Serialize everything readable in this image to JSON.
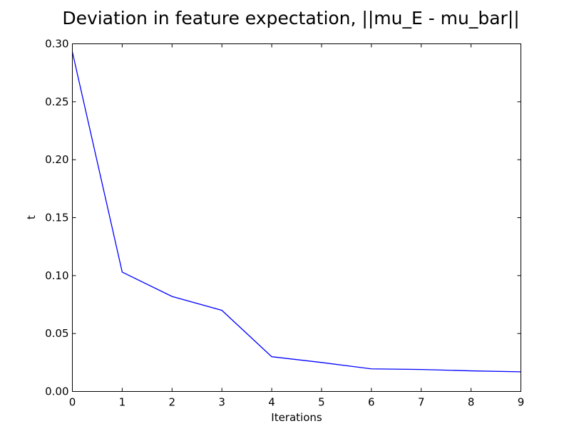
{
  "chart_data": {
    "type": "line",
    "title": "Deviation in feature expectation, ||mu_E - mu_bar||",
    "xlabel": "Iterations",
    "ylabel": "t",
    "xlim": [
      0,
      9
    ],
    "ylim": [
      0.0,
      0.3
    ],
    "xticks": [
      "0",
      "1",
      "2",
      "3",
      "4",
      "5",
      "6",
      "7",
      "8",
      "9"
    ],
    "yticks": [
      "0.00",
      "0.05",
      "0.10",
      "0.15",
      "0.20",
      "0.25",
      "0.30"
    ],
    "grid": false,
    "series": [
      {
        "color": "#0000ff",
        "x": [
          0,
          1,
          2,
          3,
          4,
          5,
          6,
          7,
          8,
          9
        ],
        "y": [
          0.293,
          0.103,
          0.082,
          0.07,
          0.03,
          0.025,
          0.0195,
          0.019,
          0.0178,
          0.017
        ]
      }
    ]
  }
}
